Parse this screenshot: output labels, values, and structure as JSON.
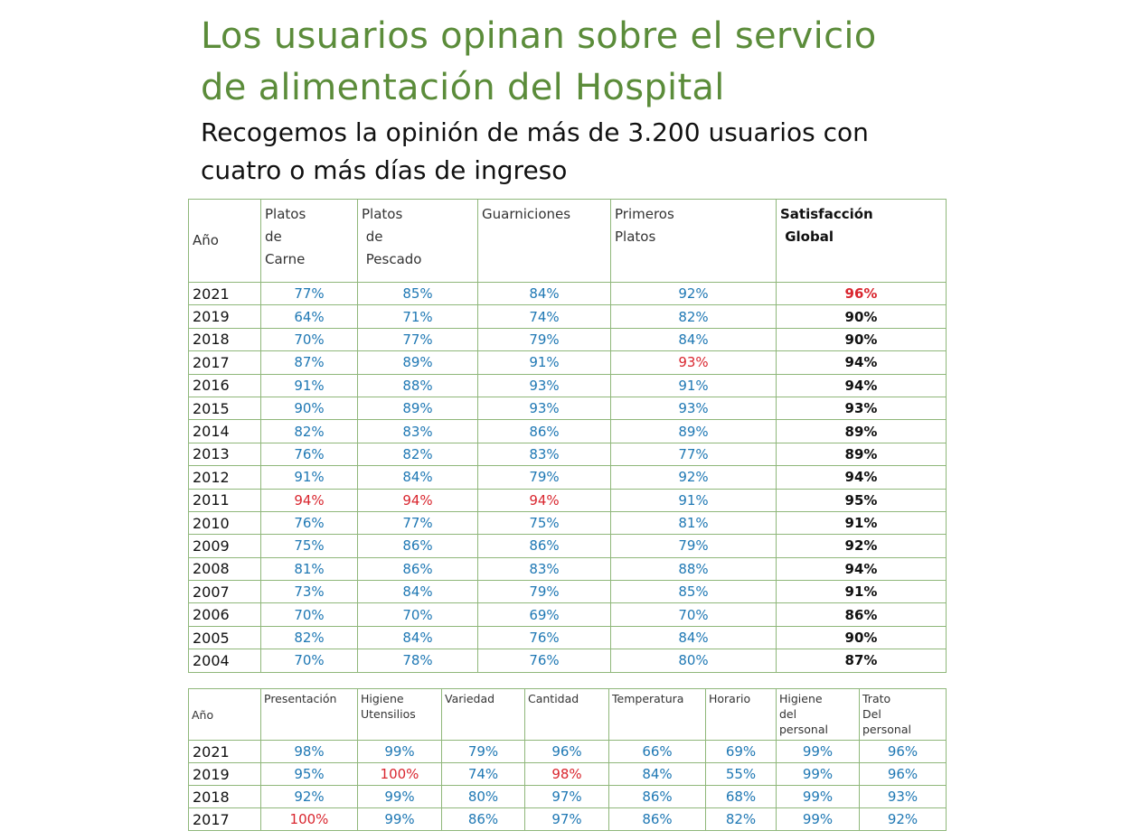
{
  "title": [
    "Los usuarios opinan sobre el servicio",
    "de alimentación del Hospital"
  ],
  "subtitle": [
    "Recogemos la opinión de más de 3.200 usuarios con",
    "cuatro o más  días de ingreso"
  ],
  "colors": {
    "title": "#5b8c3a",
    "value": "#1f78b4",
    "highlight": "#d9262f",
    "border": "#8fb77a"
  },
  "table1": {
    "headers": [
      "Año",
      "Platos\nde\nCarne",
      "Platos\n de\n Pescado",
      "Guarniciones",
      "Primeros\nPlatos",
      "Satisfacción\n Global"
    ],
    "rows": [
      {
        "year": "2021",
        "cells": [
          {
            "v": "77%"
          },
          {
            "v": "85%"
          },
          {
            "v": "84%"
          },
          {
            "v": "92%"
          },
          {
            "v": "96%",
            "hl": true
          }
        ]
      },
      {
        "year": "2019",
        "cells": [
          {
            "v": "64%"
          },
          {
            "v": "71%"
          },
          {
            "v": "74%"
          },
          {
            "v": "82%"
          },
          {
            "v": "90%"
          }
        ]
      },
      {
        "year": "2018",
        "cells": [
          {
            "v": "70%"
          },
          {
            "v": "77%"
          },
          {
            "v": "79%"
          },
          {
            "v": "84%"
          },
          {
            "v": "90%"
          }
        ]
      },
      {
        "year": "2017",
        "cells": [
          {
            "v": "87%"
          },
          {
            "v": "89%"
          },
          {
            "v": "91%"
          },
          {
            "v": "93%",
            "hl": true
          },
          {
            "v": "94%"
          }
        ]
      },
      {
        "year": "2016",
        "cells": [
          {
            "v": "91%"
          },
          {
            "v": "88%"
          },
          {
            "v": "93%"
          },
          {
            "v": "91%"
          },
          {
            "v": "94%"
          }
        ]
      },
      {
        "year": "2015",
        "cells": [
          {
            "v": "90%"
          },
          {
            "v": "89%"
          },
          {
            "v": "93%"
          },
          {
            "v": "93%"
          },
          {
            "v": "93%"
          }
        ]
      },
      {
        "year": "2014",
        "cells": [
          {
            "v": "82%"
          },
          {
            "v": "83%"
          },
          {
            "v": "86%"
          },
          {
            "v": "89%"
          },
          {
            "v": "89%"
          }
        ]
      },
      {
        "year": "2013",
        "cells": [
          {
            "v": "76%"
          },
          {
            "v": "82%"
          },
          {
            "v": "83%"
          },
          {
            "v": "77%"
          },
          {
            "v": "89%"
          }
        ]
      },
      {
        "year": "2012",
        "cells": [
          {
            "v": "91%"
          },
          {
            "v": "84%"
          },
          {
            "v": "79%"
          },
          {
            "v": "92%"
          },
          {
            "v": "94%"
          }
        ]
      },
      {
        "year": "2011",
        "cells": [
          {
            "v": "94%",
            "hl": true
          },
          {
            "v": "94%",
            "hl": true
          },
          {
            "v": "94%",
            "hl": true
          },
          {
            "v": "91%"
          },
          {
            "v": "95%"
          }
        ]
      },
      {
        "year": "2010",
        "cells": [
          {
            "v": "76%"
          },
          {
            "v": "77%"
          },
          {
            "v": "75%"
          },
          {
            "v": "81%"
          },
          {
            "v": "91%"
          }
        ]
      },
      {
        "year": "2009",
        "cells": [
          {
            "v": "75%"
          },
          {
            "v": "86%"
          },
          {
            "v": "86%"
          },
          {
            "v": "79%"
          },
          {
            "v": "92%"
          }
        ]
      },
      {
        "year": "2008",
        "cells": [
          {
            "v": "81%"
          },
          {
            "v": "86%"
          },
          {
            "v": "83%"
          },
          {
            "v": "88%"
          },
          {
            "v": "94%"
          }
        ]
      },
      {
        "year": "2007",
        "cells": [
          {
            "v": "73%"
          },
          {
            "v": "84%"
          },
          {
            "v": "79%"
          },
          {
            "v": "85%"
          },
          {
            "v": "91%"
          }
        ]
      },
      {
        "year": "2006",
        "cells": [
          {
            "v": "70%"
          },
          {
            "v": "70%"
          },
          {
            "v": "69%"
          },
          {
            "v": "70%"
          },
          {
            "v": "86%"
          }
        ]
      },
      {
        "year": "2005",
        "cells": [
          {
            "v": "82%"
          },
          {
            "v": "84%"
          },
          {
            "v": "76%"
          },
          {
            "v": "84%"
          },
          {
            "v": "90%"
          }
        ]
      },
      {
        "year": "2004",
        "cells": [
          {
            "v": "70%"
          },
          {
            "v": "78%"
          },
          {
            "v": "76%"
          },
          {
            "v": "80%"
          },
          {
            "v": "87%"
          }
        ]
      }
    ]
  },
  "table2": {
    "headers": [
      "Año",
      "Presentación",
      "Higiene\nUtensilios",
      "Variedad",
      "Cantidad",
      "Temperatura",
      "Horario",
      "Higiene\ndel\npersonal",
      "Trato\nDel\npersonal"
    ],
    "rows": [
      {
        "year": "2021",
        "cells": [
          {
            "v": "98%"
          },
          {
            "v": "99%"
          },
          {
            "v": "79%"
          },
          {
            "v": "96%"
          },
          {
            "v": "66%"
          },
          {
            "v": "69%"
          },
          {
            "v": "99%"
          },
          {
            "v": "96%"
          }
        ]
      },
      {
        "year": "2019",
        "cells": [
          {
            "v": "95%"
          },
          {
            "v": "100%",
            "hl": true
          },
          {
            "v": "74%"
          },
          {
            "v": "98%",
            "hl": true
          },
          {
            "v": "84%"
          },
          {
            "v": "55%"
          },
          {
            "v": "99%"
          },
          {
            "v": "96%"
          }
        ]
      },
      {
        "year": "2018",
        "cells": [
          {
            "v": "92%"
          },
          {
            "v": "99%"
          },
          {
            "v": "80%"
          },
          {
            "v": "97%"
          },
          {
            "v": "86%"
          },
          {
            "v": "68%"
          },
          {
            "v": "99%"
          },
          {
            "v": "93%"
          }
        ]
      },
      {
        "year": "2017",
        "cells": [
          {
            "v": "100%",
            "hl": true
          },
          {
            "v": "99%"
          },
          {
            "v": "86%"
          },
          {
            "v": "97%"
          },
          {
            "v": "86%"
          },
          {
            "v": "82%"
          },
          {
            "v": "99%"
          },
          {
            "v": "92%"
          }
        ]
      }
    ]
  }
}
